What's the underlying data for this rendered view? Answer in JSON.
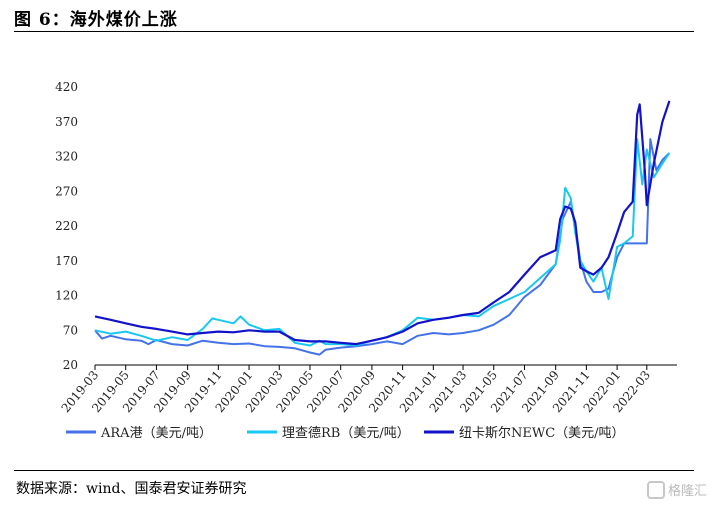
{
  "figure": {
    "title": "图 6：海外煤价上涨",
    "source": "数据来源：wind、国泰君安证券研究",
    "watermark": "格隆汇"
  },
  "chart_data": {
    "type": "line",
    "title": "",
    "xlabel": "",
    "ylabel": "",
    "ylim": [
      20,
      420
    ],
    "yticks": [
      20,
      70,
      120,
      170,
      220,
      270,
      320,
      370,
      420
    ],
    "x_ticks": [
      "2019-03",
      "2019-05",
      "2019-07",
      "2019-09",
      "2019-11",
      "2020-01",
      "2020-03",
      "2020-05",
      "2020-07",
      "2020-09",
      "2020-11",
      "2021-01",
      "2021-03",
      "2021-05",
      "2021-07",
      "2021-09",
      "2021-11",
      "2022-01",
      "2022-03"
    ],
    "x_range": [
      "2019-03-01",
      "2022-04-30"
    ],
    "grid": false,
    "legend_position": "bottom",
    "series": [
      {
        "name": "ARA港（美元/吨）",
        "color": "#4472e8",
        "points": [
          [
            "2019-03-01",
            70
          ],
          [
            "2019-03-15",
            58
          ],
          [
            "2019-04-01",
            62
          ],
          [
            "2019-05-01",
            57
          ],
          [
            "2019-06-01",
            55
          ],
          [
            "2019-06-15",
            50
          ],
          [
            "2019-07-01",
            56
          ],
          [
            "2019-08-01",
            50
          ],
          [
            "2019-09-01",
            48
          ],
          [
            "2019-10-01",
            55
          ],
          [
            "2019-11-01",
            52
          ],
          [
            "2019-12-01",
            50
          ],
          [
            "2020-01-01",
            51
          ],
          [
            "2020-02-01",
            47
          ],
          [
            "2020-03-01",
            46
          ],
          [
            "2020-04-01",
            44
          ],
          [
            "2020-05-01",
            38
          ],
          [
            "2020-05-20",
            35
          ],
          [
            "2020-06-01",
            42
          ],
          [
            "2020-07-01",
            45
          ],
          [
            "2020-08-01",
            47
          ],
          [
            "2020-09-01",
            50
          ],
          [
            "2020-10-01",
            54
          ],
          [
            "2020-11-01",
            50
          ],
          [
            "2020-12-01",
            62
          ],
          [
            "2021-01-01",
            66
          ],
          [
            "2021-02-01",
            64
          ],
          [
            "2021-03-01",
            66
          ],
          [
            "2021-04-01",
            70
          ],
          [
            "2021-05-01",
            78
          ],
          [
            "2021-06-01",
            92
          ],
          [
            "2021-07-01",
            118
          ],
          [
            "2021-08-01",
            135
          ],
          [
            "2021-09-01",
            165
          ],
          [
            "2021-09-15",
            230
          ],
          [
            "2021-10-01",
            255
          ],
          [
            "2021-10-10",
            220
          ],
          [
            "2021-10-20",
            170
          ],
          [
            "2021-11-01",
            140
          ],
          [
            "2021-11-15",
            125
          ],
          [
            "2021-12-01",
            125
          ],
          [
            "2021-12-15",
            130
          ],
          [
            "2022-01-01",
            175
          ],
          [
            "2022-01-15",
            195
          ],
          [
            "2022-02-01",
            195
          ],
          [
            "2022-02-15",
            195
          ],
          [
            "2022-03-01",
            195
          ],
          [
            "2022-03-08",
            345
          ],
          [
            "2022-03-20",
            300
          ],
          [
            "2022-04-01",
            315
          ],
          [
            "2022-04-15",
            325
          ]
        ]
      },
      {
        "name": "理查德RB（美元/吨）",
        "color": "#18c8f0",
        "points": [
          [
            "2019-03-01",
            70
          ],
          [
            "2019-04-01",
            65
          ],
          [
            "2019-05-01",
            68
          ],
          [
            "2019-06-01",
            62
          ],
          [
            "2019-07-01",
            55
          ],
          [
            "2019-08-01",
            60
          ],
          [
            "2019-09-01",
            56
          ],
          [
            "2019-10-01",
            72
          ],
          [
            "2019-10-20",
            87
          ],
          [
            "2019-11-01",
            85
          ],
          [
            "2019-12-01",
            80
          ],
          [
            "2019-12-15",
            90
          ],
          [
            "2020-01-01",
            78
          ],
          [
            "2020-02-01",
            70
          ],
          [
            "2020-03-01",
            72
          ],
          [
            "2020-04-01",
            52
          ],
          [
            "2020-05-01",
            48
          ],
          [
            "2020-05-20",
            55
          ],
          [
            "2020-06-01",
            50
          ],
          [
            "2020-07-01",
            50
          ],
          [
            "2020-08-01",
            48
          ],
          [
            "2020-09-01",
            55
          ],
          [
            "2020-10-01",
            60
          ],
          [
            "2020-11-01",
            70
          ],
          [
            "2020-12-01",
            88
          ],
          [
            "2021-01-01",
            85
          ],
          [
            "2021-02-01",
            88
          ],
          [
            "2021-03-01",
            92
          ],
          [
            "2021-04-01",
            90
          ],
          [
            "2021-05-01",
            105
          ],
          [
            "2021-06-01",
            115
          ],
          [
            "2021-07-01",
            125
          ],
          [
            "2021-08-01",
            145
          ],
          [
            "2021-09-01",
            165
          ],
          [
            "2021-09-10",
            200
          ],
          [
            "2021-09-20",
            275
          ],
          [
            "2021-10-01",
            260
          ],
          [
            "2021-10-10",
            210
          ],
          [
            "2021-10-20",
            170
          ],
          [
            "2021-11-01",
            155
          ],
          [
            "2021-11-15",
            140
          ],
          [
            "2021-12-01",
            160
          ],
          [
            "2021-12-15",
            115
          ],
          [
            "2022-01-01",
            190
          ],
          [
            "2022-01-15",
            195
          ],
          [
            "2022-02-01",
            205
          ],
          [
            "2022-02-10",
            345
          ],
          [
            "2022-02-20",
            280
          ],
          [
            "2022-03-01",
            330
          ],
          [
            "2022-03-15",
            290
          ],
          [
            "2022-04-01",
            310
          ],
          [
            "2022-04-15",
            325
          ]
        ]
      },
      {
        "name": "纽卡斯尔NEWC（美元/吨）",
        "color": "#1212c8",
        "points": [
          [
            "2019-03-01",
            90
          ],
          [
            "2019-04-01",
            85
          ],
          [
            "2019-05-01",
            80
          ],
          [
            "2019-06-01",
            75
          ],
          [
            "2019-07-01",
            72
          ],
          [
            "2019-08-01",
            68
          ],
          [
            "2019-09-01",
            64
          ],
          [
            "2019-10-01",
            66
          ],
          [
            "2019-11-01",
            68
          ],
          [
            "2019-12-01",
            67
          ],
          [
            "2020-01-01",
            70
          ],
          [
            "2020-02-01",
            68
          ],
          [
            "2020-03-01",
            68
          ],
          [
            "2020-04-01",
            56
          ],
          [
            "2020-05-01",
            54
          ],
          [
            "2020-06-01",
            54
          ],
          [
            "2020-07-01",
            52
          ],
          [
            "2020-08-01",
            50
          ],
          [
            "2020-09-01",
            55
          ],
          [
            "2020-10-01",
            60
          ],
          [
            "2020-11-01",
            68
          ],
          [
            "2020-12-01",
            80
          ],
          [
            "2021-01-01",
            85
          ],
          [
            "2021-02-01",
            88
          ],
          [
            "2021-03-01",
            92
          ],
          [
            "2021-04-01",
            95
          ],
          [
            "2021-05-01",
            110
          ],
          [
            "2021-06-01",
            125
          ],
          [
            "2021-07-01",
            150
          ],
          [
            "2021-08-01",
            175
          ],
          [
            "2021-09-01",
            185
          ],
          [
            "2021-09-10",
            230
          ],
          [
            "2021-09-20",
            248
          ],
          [
            "2021-10-01",
            245
          ],
          [
            "2021-10-10",
            225
          ],
          [
            "2021-10-20",
            160
          ],
          [
            "2021-11-01",
            155
          ],
          [
            "2021-11-15",
            150
          ],
          [
            "2021-12-01",
            160
          ],
          [
            "2021-12-15",
            175
          ],
          [
            "2022-01-01",
            210
          ],
          [
            "2022-01-15",
            240
          ],
          [
            "2022-02-01",
            255
          ],
          [
            "2022-02-10",
            380
          ],
          [
            "2022-02-15",
            395
          ],
          [
            "2022-02-25",
            300
          ],
          [
            "2022-03-01",
            250
          ],
          [
            "2022-03-15",
            310
          ],
          [
            "2022-04-01",
            370
          ],
          [
            "2022-04-15",
            400
          ]
        ]
      }
    ]
  }
}
